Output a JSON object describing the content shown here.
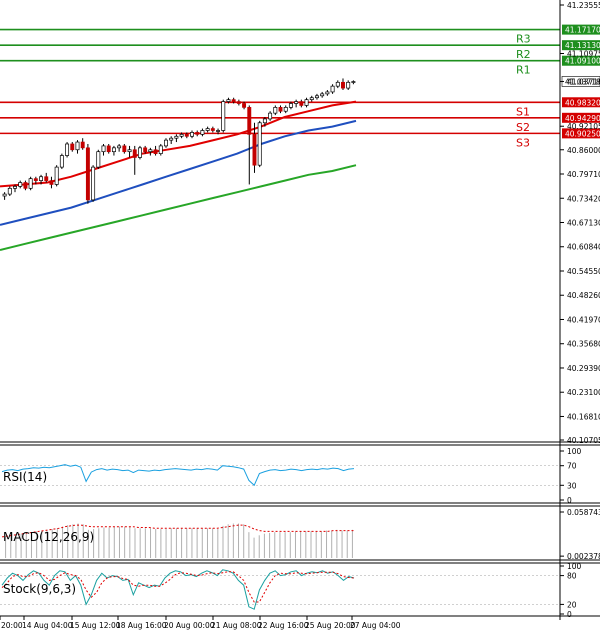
{
  "chart_data": {
    "type": "candlestick",
    "instrument_panel": {
      "y_range": [
        40.10705,
        41.23555
      ],
      "y_ticks": [
        "41.23555",
        "41.10975",
        "41.03718",
        "40.92105",
        "40.86000",
        "40.79710",
        "40.73420",
        "40.67130",
        "40.60840",
        "40.54550",
        "40.48260",
        "40.41970",
        "40.35680",
        "40.29390",
        "40.23100",
        "40.16810",
        "40.10705"
      ],
      "current_price": "41.03718",
      "current_price_value": 41.03718,
      "levels": [
        {
          "name": "R3",
          "label": "41.17170",
          "value": 41.1717,
          "color": "#1e8f1e"
        },
        {
          "name": "R2",
          "label": "41.13130",
          "value": 41.1313,
          "color": "#1e8f1e"
        },
        {
          "name": "R1",
          "label": "41.09100",
          "value": 41.091,
          "color": "#1e8f1e"
        },
        {
          "name": "S1",
          "label": "40.98320",
          "value": 40.9832,
          "color": "#d40000"
        },
        {
          "name": "S2",
          "label": "40.94290",
          "value": 40.9429,
          "color": "#d40000"
        },
        {
          "name": "S3",
          "label": "40.90250",
          "value": 40.9025,
          "color": "#d40000"
        }
      ],
      "candles": [
        [
          40.74,
          40.75,
          40.73,
          40.745
        ],
        [
          40.745,
          40.765,
          40.74,
          40.76
        ],
        [
          40.76,
          40.77,
          40.75,
          40.765
        ],
        [
          40.765,
          40.78,
          40.76,
          40.775
        ],
        [
          40.775,
          40.78,
          40.755,
          40.76
        ],
        [
          40.76,
          40.79,
          40.755,
          40.785
        ],
        [
          40.785,
          40.79,
          40.77,
          40.78
        ],
        [
          40.78,
          40.795,
          40.77,
          40.79
        ],
        [
          40.79,
          40.8,
          40.775,
          40.78
        ],
        [
          40.78,
          40.79,
          40.76,
          40.77
        ],
        [
          40.77,
          40.82,
          40.765,
          40.815
        ],
        [
          40.815,
          40.85,
          40.81,
          40.845
        ],
        [
          40.845,
          40.88,
          40.84,
          40.875
        ],
        [
          40.875,
          40.88,
          40.855,
          40.86
        ],
        [
          40.86,
          40.885,
          40.85,
          40.88
        ],
        [
          40.88,
          40.89,
          40.86,
          40.865
        ],
        [
          40.865,
          40.875,
          40.72,
          40.73
        ],
        [
          40.73,
          40.82,
          40.725,
          40.815
        ],
        [
          40.815,
          40.86,
          40.81,
          40.855
        ],
        [
          40.855,
          40.875,
          40.845,
          40.87
        ],
        [
          40.87,
          40.875,
          40.85,
          40.855
        ],
        [
          40.855,
          40.87,
          40.845,
          40.865
        ],
        [
          40.865,
          40.875,
          40.855,
          40.87
        ],
        [
          40.87,
          40.875,
          40.85,
          40.855
        ],
        [
          40.855,
          40.87,
          40.84,
          40.86
        ],
        [
          40.86,
          40.87,
          40.795,
          40.84
        ],
        [
          40.84,
          40.87,
          40.835,
          40.865
        ],
        [
          40.865,
          40.87,
          40.85,
          40.855
        ],
        [
          40.855,
          40.865,
          40.845,
          40.86
        ],
        [
          40.86,
          40.87,
          40.845,
          40.85
        ],
        [
          40.85,
          40.875,
          40.845,
          40.87
        ],
        [
          40.87,
          40.89,
          40.865,
          40.885
        ],
        [
          40.885,
          40.895,
          40.875,
          40.89
        ],
        [
          40.89,
          40.9,
          40.88,
          40.895
        ],
        [
          40.895,
          40.905,
          40.89,
          40.9
        ],
        [
          40.9,
          40.905,
          40.89,
          40.895
        ],
        [
          40.895,
          40.91,
          40.89,
          40.905
        ],
        [
          40.905,
          40.91,
          40.895,
          40.9
        ],
        [
          40.9,
          40.915,
          40.895,
          40.91
        ],
        [
          40.91,
          40.92,
          40.905,
          40.915
        ],
        [
          40.915,
          40.92,
          40.905,
          40.91
        ],
        [
          40.91,
          40.915,
          40.9,
          40.91
        ],
        [
          40.91,
          40.99,
          40.905,
          40.985
        ],
        [
          40.985,
          40.995,
          40.98,
          40.99
        ],
        [
          40.99,
          40.995,
          40.98,
          40.985
        ],
        [
          40.985,
          40.99,
          40.975,
          40.98
        ],
        [
          40.98,
          40.985,
          40.965,
          40.97
        ],
        [
          40.97,
          40.975,
          40.77,
          40.9
        ],
        [
          40.9,
          40.93,
          40.8,
          40.82
        ],
        [
          40.82,
          40.935,
          40.815,
          40.93
        ],
        [
          40.93,
          40.945,
          40.92,
          40.94
        ],
        [
          40.94,
          40.96,
          40.935,
          40.955
        ],
        [
          40.955,
          40.975,
          40.95,
          40.97
        ],
        [
          40.97,
          40.975,
          40.955,
          40.96
        ],
        [
          40.96,
          40.975,
          40.955,
          40.97
        ],
        [
          40.97,
          40.985,
          40.965,
          40.98
        ],
        [
          40.98,
          40.99,
          40.97,
          40.985
        ],
        [
          40.985,
          40.99,
          40.97,
          40.975
        ],
        [
          40.975,
          40.995,
          40.97,
          40.99
        ],
        [
          40.99,
          41.0,
          40.985,
          40.995
        ],
        [
          40.995,
          41.005,
          40.99,
          41.0
        ],
        [
          41.0,
          41.01,
          40.995,
          41.005
        ],
        [
          41.005,
          41.015,
          41.0,
          41.01
        ],
        [
          41.01,
          41.03,
          41.005,
          41.025
        ],
        [
          41.025,
          41.04,
          41.02,
          41.035
        ],
        [
          41.035,
          41.045,
          41.015,
          41.02
        ],
        [
          41.02,
          41.04,
          41.015,
          41.035
        ],
        [
          41.035,
          41.04,
          41.03,
          41.037
        ]
      ],
      "sma_fast_red": [
        40.765,
        40.77,
        40.775,
        40.79,
        40.81,
        40.83,
        40.85,
        40.86,
        40.87,
        40.885,
        40.9,
        40.92,
        40.945,
        40.96,
        40.975,
        40.985
      ],
      "sma_mid_blue": [
        40.665,
        40.68,
        40.695,
        40.71,
        40.73,
        40.75,
        40.77,
        40.79,
        40.81,
        40.83,
        40.85,
        40.875,
        40.895,
        40.91,
        40.92,
        40.935
      ],
      "sma_slow_green": [
        40.6,
        40.615,
        40.63,
        40.645,
        40.66,
        40.675,
        40.69,
        40.705,
        40.72,
        40.735,
        40.75,
        40.765,
        40.78,
        40.795,
        40.805,
        40.82
      ]
    },
    "rsi_panel": {
      "label": "RSI(14)",
      "y_ticks": [
        "100",
        "70",
        "30",
        "0"
      ],
      "y_range": [
        0,
        100
      ],
      "values": [
        58,
        61,
        62,
        60,
        63,
        64,
        66,
        65,
        67,
        66,
        68,
        70,
        72,
        69,
        71,
        67,
        38,
        57,
        62,
        64,
        61,
        63,
        62,
        60,
        61,
        56,
        61,
        60,
        59,
        61,
        60,
        62,
        63,
        64,
        63,
        62,
        61,
        63,
        62,
        64,
        63,
        61,
        70,
        69,
        68,
        66,
        63,
        40,
        30,
        54,
        58,
        61,
        62,
        60,
        61,
        63,
        62,
        60,
        62,
        63,
        62,
        64,
        63,
        65,
        64,
        60,
        63,
        64
      ]
    },
    "macd_panel": {
      "label": "MACD(12,26,9)",
      "y_ticks": [
        "0.058743",
        "0.002378"
      ],
      "y_range": [
        0.0,
        0.058743
      ],
      "histogram": [
        0.028,
        0.029,
        0.03,
        0.031,
        0.032,
        0.033,
        0.034,
        0.035,
        0.036,
        0.037,
        0.038,
        0.04,
        0.042,
        0.043,
        0.044,
        0.043,
        0.036,
        0.037,
        0.038,
        0.039,
        0.039,
        0.04,
        0.04,
        0.04,
        0.04,
        0.038,
        0.038,
        0.038,
        0.038,
        0.037,
        0.037,
        0.037,
        0.038,
        0.038,
        0.038,
        0.038,
        0.038,
        0.038,
        0.038,
        0.038,
        0.038,
        0.037,
        0.041,
        0.043,
        0.044,
        0.044,
        0.043,
        0.033,
        0.026,
        0.029,
        0.031,
        0.032,
        0.033,
        0.033,
        0.033,
        0.033,
        0.034,
        0.034,
        0.034,
        0.034,
        0.034,
        0.034,
        0.035,
        0.035,
        0.036,
        0.035,
        0.035,
        0.036
      ],
      "signal": [
        0.027,
        0.028,
        0.029,
        0.03,
        0.031,
        0.032,
        0.033,
        0.034,
        0.035,
        0.036,
        0.037,
        0.038,
        0.04,
        0.041,
        0.042,
        0.042,
        0.041,
        0.04,
        0.04,
        0.04,
        0.04,
        0.04,
        0.04,
        0.04,
        0.04,
        0.04,
        0.039,
        0.039,
        0.039,
        0.038,
        0.038,
        0.038,
        0.038,
        0.038,
        0.038,
        0.038,
        0.038,
        0.038,
        0.038,
        0.038,
        0.038,
        0.038,
        0.039,
        0.04,
        0.041,
        0.042,
        0.042,
        0.04,
        0.037,
        0.035,
        0.034,
        0.034,
        0.034,
        0.034,
        0.034,
        0.034,
        0.034,
        0.034,
        0.034,
        0.034,
        0.034,
        0.034,
        0.034,
        0.035,
        0.035,
        0.035,
        0.035,
        0.035
      ]
    },
    "stoch_panel": {
      "label": "Stock(9,6,3)",
      "y_ticks": [
        "100",
        "80",
        "20",
        "0"
      ],
      "y_range": [
        0,
        100
      ],
      "k": [
        60,
        75,
        85,
        80,
        70,
        82,
        90,
        85,
        70,
        60,
        80,
        90,
        88,
        70,
        80,
        60,
        20,
        40,
        70,
        85,
        75,
        80,
        78,
        70,
        72,
        40,
        65,
        60,
        55,
        60,
        58,
        75,
        85,
        90,
        88,
        80,
        82,
        78,
        85,
        90,
        86,
        80,
        92,
        90,
        85,
        70,
        60,
        15,
        10,
        50,
        70,
        85,
        90,
        80,
        82,
        88,
        90,
        80,
        85,
        88,
        86,
        90,
        85,
        88,
        80,
        70,
        78,
        75
      ],
      "d": [
        55,
        65,
        78,
        82,
        78,
        78,
        84,
        86,
        80,
        70,
        72,
        80,
        86,
        82,
        80,
        72,
        50,
        35,
        45,
        65,
        75,
        78,
        78,
        74,
        72,
        60,
        58,
        60,
        60,
        58,
        58,
        64,
        72,
        82,
        86,
        85,
        83,
        80,
        81,
        84,
        86,
        84,
        86,
        88,
        88,
        80,
        70,
        45,
        25,
        25,
        45,
        65,
        80,
        85,
        84,
        84,
        86,
        85,
        84,
        85,
        86,
        87,
        87,
        87,
        84,
        78,
        76,
        75
      ]
    },
    "x_ticks": [
      "20:00",
      "14 Aug 04:00",
      "15 Aug 12:00",
      "18 Aug 16:00",
      "20 Aug 00:00",
      "21 Aug 08:00",
      "22 Aug 16:00",
      "25 Aug 20:00",
      "27 Aug 04:00"
    ]
  },
  "colors": {
    "bull": "#1e8f1e",
    "bear": "#c40000",
    "sma_fast": "#e00000",
    "sma_mid": "#1f4fbf",
    "sma_slow": "#27a627",
    "rsi_line": "#1aa0e0",
    "macd_hist": "#b0b0b0",
    "macd_signal": "#e00000",
    "stoch_k": "#1aa0a0",
    "stoch_d": "#e00000",
    "grid": "#e6e6e6",
    "axis": "#000000"
  }
}
